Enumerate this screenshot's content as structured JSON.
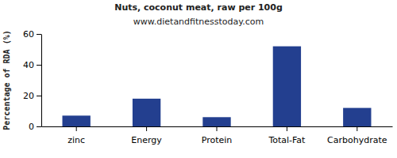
{
  "chart_data": {
    "type": "bar",
    "title": "Nuts, coconut meat, raw per 100g",
    "subtitle": "www.dietandfitnesstoday.com",
    "ylabel": "Percentage of RDA (%)",
    "categories": [
      "zinc",
      "Energy",
      "Protein",
      "Total-Fat",
      "Carbohydrate"
    ],
    "values": [
      7,
      18,
      6,
      52,
      12
    ],
    "color": "#233f8f",
    "ylim": [
      0,
      60
    ],
    "yticks": [
      0,
      20,
      40,
      60
    ],
    "grid": false
  }
}
